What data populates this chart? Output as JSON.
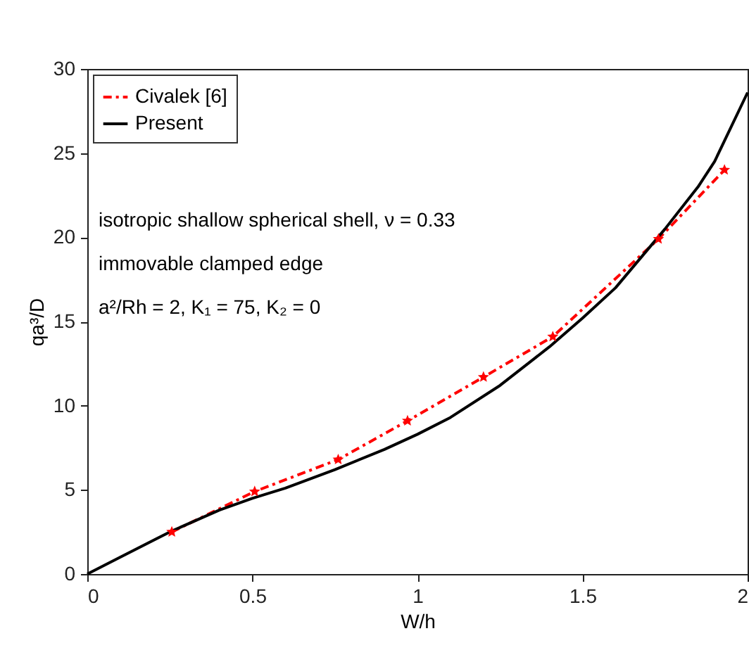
{
  "chart_data": {
    "type": "line",
    "xlabel": "W/h",
    "ylabel": "qa³/D",
    "xlim": [
      0,
      2
    ],
    "ylim": [
      0,
      30
    ],
    "xticks": [
      0,
      0.5,
      1,
      1.5,
      2
    ],
    "yticks": [
      0,
      5,
      10,
      15,
      20,
      25,
      30
    ],
    "grid": false,
    "legend": "top left",
    "annotations": [
      "isotropic shallow spherical shell, ν = 0.33",
      "immovable clamped edge",
      "a²/Rh = 2, K₁ = 75, K₂ = 0"
    ],
    "series": [
      {
        "name": "Civalek [6]",
        "color": "#ff0000",
        "marker": "star",
        "line_style": "dashed",
        "x": [
          0.256,
          0.507,
          0.76,
          0.97,
          1.2,
          1.41,
          1.73,
          1.93
        ],
        "values": [
          2.5,
          4.9,
          6.8,
          9.1,
          11.7,
          14.1,
          19.9,
          24.0
        ]
      },
      {
        "name": "Present",
        "color": "#000000",
        "marker": "none",
        "line_style": "solid",
        "x": [
          0,
          0.1,
          0.25,
          0.4,
          0.5,
          0.6,
          0.75,
          0.9,
          1.0,
          1.1,
          1.25,
          1.4,
          1.5,
          1.6,
          1.75,
          1.85,
          1.9,
          2.0
        ],
        "values": [
          0,
          1,
          2.5,
          3.8,
          4.5,
          5.1,
          6.2,
          7.4,
          8.3,
          9.3,
          11.2,
          13.5,
          15.2,
          17.0,
          20.5,
          23.0,
          24.5,
          28.6
        ]
      }
    ]
  }
}
